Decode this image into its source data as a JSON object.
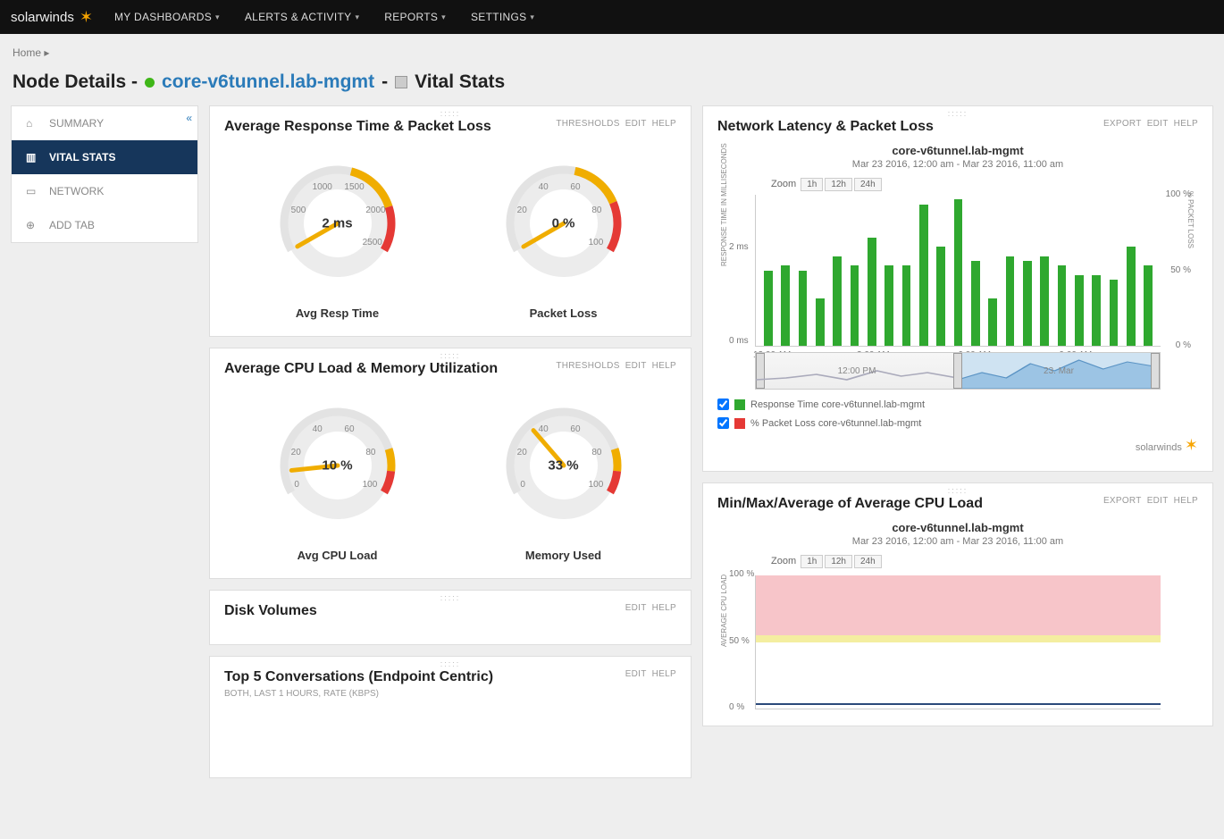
{
  "topnav": {
    "brand": "solarwinds",
    "items": [
      "MY DASHBOARDS",
      "ALERTS & ACTIVITY",
      "REPORTS",
      "SETTINGS"
    ]
  },
  "breadcrumb": {
    "home": "Home"
  },
  "title": {
    "prefix": "Node Details - ",
    "node": "core-v6tunnel.lab-mgmt",
    "sep": " - ",
    "section": "Vital Stats"
  },
  "sidebar": {
    "items": [
      {
        "label": "SUMMARY"
      },
      {
        "label": "VITAL STATS"
      },
      {
        "label": "NETWORK"
      },
      {
        "label": "ADD TAB"
      }
    ],
    "active_index": 1
  },
  "actions": {
    "thresholds": "THRESHOLDS",
    "edit": "EDIT",
    "help": "HELP",
    "export": "EXPORT"
  },
  "panel_resp": {
    "title": "Average Response Time & Packet Loss",
    "gauges": [
      {
        "label": "Avg Resp Time",
        "value_text": "2 ms",
        "value": 2,
        "max": 2500,
        "ticks": [
          "500",
          "1000",
          "1500",
          "2000",
          "2500"
        ],
        "warn_start": 1400,
        "crit_start": 2000,
        "ring_bg": "#e3e3e3",
        "warn_color": "#f0ad00",
        "crit_color": "#e53935",
        "needle_color": "#f0ad00"
      },
      {
        "label": "Packet Loss",
        "value_text": "0 %",
        "value": 0,
        "max": 100,
        "ticks": [
          "20",
          "40",
          "60",
          "80",
          "100"
        ],
        "warn_start": 55,
        "crit_start": 78,
        "ring_bg": "#e3e3e3",
        "warn_color": "#f0ad00",
        "crit_color": "#e53935",
        "needle_color": "#f0ad00"
      }
    ]
  },
  "panel_cpu": {
    "title": "Average CPU Load & Memory Utilization",
    "gauges": [
      {
        "label": "Avg CPU Load",
        "value_text": "10 %",
        "value": 10,
        "max": 100,
        "ticks": [
          "0",
          "20",
          "40",
          "60",
          "80",
          "100"
        ],
        "warn_start": 80,
        "crit_start": 90,
        "ring_bg": "#e3e3e3",
        "warn_color": "#f0ad00",
        "crit_color": "#e53935",
        "needle_color": "#f0ad00"
      },
      {
        "label": "Memory Used",
        "value_text": "33 %",
        "value": 33,
        "max": 100,
        "ticks": [
          "0",
          "20",
          "40",
          "60",
          "80",
          "100"
        ],
        "warn_start": 80,
        "crit_start": 90,
        "ring_bg": "#e3e3e3",
        "warn_color": "#f0ad00",
        "crit_color": "#e53935",
        "needle_color": "#f0ad00"
      }
    ]
  },
  "panel_disk": {
    "title": "Disk Volumes"
  },
  "panel_conv": {
    "title": "Top 5 Conversations (Endpoint Centric)",
    "sub": "BOTH, LAST 1 HOURS, RATE (KBPS)"
  },
  "panel_latency": {
    "title": "Network Latency & Packet Loss",
    "chart_title": "core-v6tunnel.lab-mgmt",
    "chart_sub": "Mar 23 2016, 12:00 am - Mar 23 2016, 11:00 am",
    "zoom_label": "Zoom",
    "zoom_opts": [
      "1h",
      "12h",
      "24h"
    ],
    "y_left_label": "RESPONSE TIME IN MILLISECONDS",
    "y_right_label": "% PACKET LOSS",
    "y_left_ticks": [
      "0 ms",
      "2 ms"
    ],
    "y_right_ticks": [
      "0 %",
      "50 %",
      "100 %"
    ],
    "x_ticks": [
      "12:00 AM",
      "3:00 AM",
      "6:00 AM",
      "9:00 AM"
    ],
    "bar_color": "#2fa82f",
    "bars_ms": [
      1.6,
      1.7,
      1.6,
      1.0,
      1.9,
      1.7,
      2.3,
      1.7,
      1.7,
      3.0,
      2.1,
      3.1,
      1.8,
      1.0,
      1.9,
      1.8,
      1.9,
      1.7,
      1.5,
      1.5,
      1.4,
      2.1,
      1.7
    ],
    "y_max": 3.2,
    "range_left_label": "12:00 PM",
    "range_right_label": "23. Mar",
    "legend": [
      {
        "color": "#2fa82f",
        "text": "Response Time core-v6tunnel.lab-mgmt"
      },
      {
        "color": "#e53935",
        "text": "% Packet Loss core-v6tunnel.lab-mgmt"
      }
    ],
    "footer_brand": "solarwinds"
  },
  "panel_cpu_hist": {
    "title": "Min/Max/Average of Average CPU Load",
    "chart_title": "core-v6tunnel.lab-mgmt",
    "chart_sub": "Mar 23 2016, 12:00 am - Mar 23 2016, 11:00 am",
    "zoom_label": "Zoom",
    "zoom_opts": [
      "1h",
      "12h",
      "24h"
    ],
    "y_label": "AVERAGE CPU LOAD",
    "y_ticks": [
      "0 %",
      "50 %",
      "100 %"
    ],
    "bands": [
      {
        "from": 55,
        "to": 100,
        "color": "#f7c5c9"
      },
      {
        "from": 50,
        "to": 55,
        "color": "#f4eea0"
      },
      {
        "from": 0,
        "to": 50,
        "color": "#ffffff"
      }
    ],
    "line_value": 3,
    "line_color": "#2b4a7a"
  }
}
